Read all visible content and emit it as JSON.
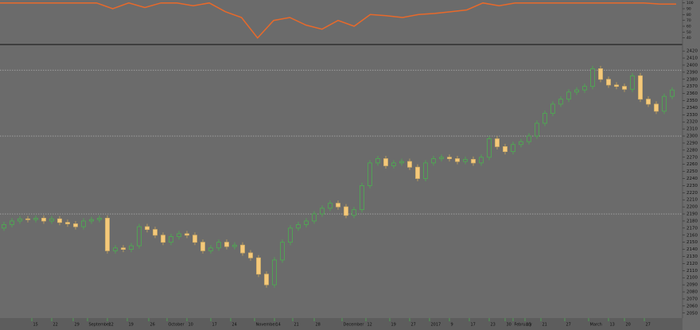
{
  "chart_data": [
    {
      "type": "line",
      "color": "#e8692a",
      "values": [
        100,
        100,
        100,
        100,
        100,
        100,
        100,
        90,
        100,
        92,
        100,
        100,
        95,
        100,
        85,
        75,
        40,
        70,
        75,
        62,
        55,
        70,
        60,
        80,
        78,
        75,
        80,
        82,
        85,
        88,
        100,
        95,
        100,
        100,
        100,
        100,
        100,
        100,
        100,
        100,
        100,
        98,
        98
      ],
      "ylim": [
        30,
        105
      ],
      "yticks": [
        40,
        50,
        60,
        70,
        80,
        90,
        100
      ]
    },
    {
      "type": "candlestick",
      "open": [
        2170,
        2175,
        2180,
        2183,
        2182,
        2184,
        2180,
        2183,
        2178,
        2176,
        2172,
        2180,
        2182,
        2184,
        2138,
        2142,
        2140,
        2145,
        2172,
        2168,
        2160,
        2150,
        2158,
        2162,
        2160,
        2150,
        2138,
        2142,
        2150,
        2144,
        2146,
        2135,
        2128,
        2105,
        2090,
        2125,
        2150,
        2170,
        2175,
        2180,
        2190,
        2198,
        2205,
        2200,
        2188,
        2196,
        2230,
        2262,
        2268,
        2258,
        2262,
        2264,
        2256,
        2240,
        2262,
        2268,
        2270,
        2268,
        2264,
        2267,
        2262,
        2270,
        2296,
        2285,
        2278,
        2288,
        2292,
        2300,
        2318,
        2332,
        2345,
        2352,
        2362,
        2365,
        2370,
        2395,
        2380,
        2372,
        2370,
        2366,
        2385,
        2352,
        2345,
        2335,
        2356
      ],
      "high": [
        2179,
        2184,
        2187,
        2187,
        2188,
        2188,
        2187,
        2187,
        2182,
        2180,
        2184,
        2186,
        2188,
        2188,
        2146,
        2146,
        2149,
        2176,
        2176,
        2172,
        2164,
        2162,
        2166,
        2166,
        2164,
        2154,
        2146,
        2154,
        2154,
        2150,
        2150,
        2139,
        2132,
        2109,
        2129,
        2154,
        2174,
        2179,
        2184,
        2194,
        2202,
        2209,
        2209,
        2204,
        2200,
        2234,
        2266,
        2272,
        2272,
        2266,
        2268,
        2268,
        2260,
        2266,
        2272,
        2274,
        2274,
        2272,
        2271,
        2271,
        2274,
        2300,
        2300,
        2289,
        2292,
        2296,
        2304,
        2322,
        2336,
        2349,
        2356,
        2366,
        2369,
        2374,
        2399,
        2399,
        2384,
        2376,
        2374,
        2389,
        2389,
        2356,
        2349,
        2360,
        2369
      ],
      "low": [
        2166,
        2171,
        2176,
        2178,
        2178,
        2176,
        2176,
        2174,
        2172,
        2168,
        2168,
        2176,
        2178,
        2134,
        2134,
        2136,
        2136,
        2141,
        2164,
        2156,
        2146,
        2146,
        2154,
        2156,
        2146,
        2134,
        2134,
        2138,
        2140,
        2140,
        2131,
        2124,
        2101,
        2086,
        2086,
        2121,
        2146,
        2166,
        2171,
        2176,
        2186,
        2194,
        2196,
        2184,
        2184,
        2192,
        2226,
        2258,
        2254,
        2254,
        2258,
        2252,
        2236,
        2236,
        2258,
        2264,
        2264,
        2260,
        2260,
        2258,
        2258,
        2266,
        2281,
        2274,
        2274,
        2284,
        2288,
        2296,
        2314,
        2328,
        2341,
        2348,
        2358,
        2361,
        2366,
        2376,
        2368,
        2366,
        2362,
        2362,
        2348,
        2341,
        2331,
        2331,
        2352
      ],
      "close": [
        2175,
        2180,
        2183,
        2182,
        2184,
        2180,
        2183,
        2178,
        2176,
        2172,
        2180,
        2182,
        2184,
        2138,
        2142,
        2140,
        2145,
        2172,
        2168,
        2160,
        2150,
        2158,
        2162,
        2160,
        2150,
        2138,
        2142,
        2150,
        2144,
        2146,
        2135,
        2128,
        2105,
        2090,
        2125,
        2150,
        2170,
        2175,
        2180,
        2190,
        2198,
        2205,
        2200,
        2188,
        2196,
        2230,
        2262,
        2268,
        2258,
        2262,
        2264,
        2256,
        2240,
        2262,
        2268,
        2270,
        2268,
        2264,
        2267,
        2262,
        2270,
        2296,
        2285,
        2278,
        2288,
        2292,
        2300,
        2318,
        2332,
        2345,
        2352,
        2362,
        2365,
        2370,
        2395,
        2380,
        2372,
        2370,
        2366,
        2385,
        2352,
        2345,
        2335,
        2356,
        2365
      ],
      "ylim": [
        2043,
        2428
      ],
      "yticks": [
        2050,
        2060,
        2070,
        2080,
        2090,
        2100,
        2110,
        2120,
        2130,
        2140,
        2150,
        2160,
        2170,
        2180,
        2190,
        2200,
        2210,
        2220,
        2230,
        2240,
        2250,
        2260,
        2270,
        2280,
        2290,
        2300,
        2310,
        2320,
        2330,
        2340,
        2350,
        2360,
        2370,
        2380,
        2390,
        2400,
        2410,
        2420
      ],
      "levels": [
        2190,
        2300,
        2393
      ],
      "xticks": [
        {
          "value": 3.5,
          "label": "15"
        },
        {
          "value": 6,
          "label": "22"
        },
        {
          "value": 8.7,
          "label": "29"
        },
        {
          "value": 10.5,
          "label": "September"
        },
        {
          "value": 13,
          "label": "12"
        },
        {
          "value": 15.5,
          "label": "19"
        },
        {
          "value": 18.2,
          "label": "26"
        },
        {
          "value": 20.5,
          "label": "October"
        },
        {
          "value": 23,
          "label": "10"
        },
        {
          "value": 26,
          "label": "17"
        },
        {
          "value": 28.5,
          "label": "24"
        },
        {
          "value": 31.5,
          "label": "November"
        },
        {
          "value": 34,
          "label": "14"
        },
        {
          "value": 36.3,
          "label": "21"
        },
        {
          "value": 39,
          "label": "28"
        },
        {
          "value": 42.5,
          "label": "December"
        },
        {
          "value": 45.5,
          "label": "12"
        },
        {
          "value": 48.5,
          "label": "19"
        },
        {
          "value": 51,
          "label": "27"
        },
        {
          "value": 53.5,
          "label": "2017"
        },
        {
          "value": 56,
          "label": "9"
        },
        {
          "value": 58.5,
          "label": "17"
        },
        {
          "value": 61,
          "label": "23"
        },
        {
          "value": 63,
          "label": "30"
        },
        {
          "value": 64,
          "label": "February"
        },
        {
          "value": 65.5,
          "label": "13"
        },
        {
          "value": 67.5,
          "label": "21"
        },
        {
          "value": 70.5,
          "label": "27"
        },
        {
          "value": 73.5,
          "label": "March"
        },
        {
          "value": 76,
          "label": "13"
        },
        {
          "value": 78,
          "label": "20"
        },
        {
          "value": 80.5,
          "label": "27"
        }
      ]
    }
  ]
}
